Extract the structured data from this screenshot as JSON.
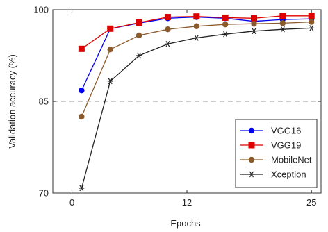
{
  "chart_data": {
    "type": "line",
    "title": "",
    "xlabel": "Epochs",
    "ylabel": "Validation accuracy (%)",
    "xlim": [
      -2,
      26
    ],
    "ylim": [
      70,
      100
    ],
    "x_ticks": [
      0,
      12,
      25
    ],
    "y_ticks": [
      70,
      85,
      100
    ],
    "reference_line": {
      "y": 85,
      "style": "dashed",
      "color": "#aaaaaa"
    },
    "grid": false,
    "legend_position": "bottom-right",
    "series": [
      {
        "name": "VGG16",
        "color": "#0000ee",
        "marker": "circle",
        "x": [
          1,
          4,
          7,
          10,
          13,
          16,
          19,
          22,
          25
        ],
        "y": [
          86.8,
          96.9,
          97.8,
          98.6,
          98.8,
          98.6,
          98.1,
          98.4,
          98.5
        ]
      },
      {
        "name": "VGG19",
        "color": "#dd0000",
        "marker": "square",
        "x": [
          1,
          4,
          7,
          10,
          13,
          16,
          19,
          22,
          25
        ],
        "y": [
          93.6,
          96.9,
          97.9,
          98.8,
          98.9,
          98.7,
          98.6,
          99.0,
          99.0
        ]
      },
      {
        "name": "MobileNet",
        "color": "#8b5a2b",
        "marker": "circle",
        "x": [
          1,
          4,
          7,
          10,
          13,
          16,
          19,
          22,
          25
        ],
        "y": [
          82.5,
          93.5,
          95.8,
          96.8,
          97.3,
          97.6,
          97.7,
          97.8,
          98.0
        ]
      },
      {
        "name": "Xception",
        "color": "#222222",
        "marker": "star",
        "x": [
          1,
          4,
          7,
          10,
          13,
          16,
          19,
          22,
          25
        ],
        "y": [
          70.8,
          88.3,
          92.5,
          94.4,
          95.4,
          96.0,
          96.5,
          96.8,
          97.0
        ]
      }
    ]
  }
}
